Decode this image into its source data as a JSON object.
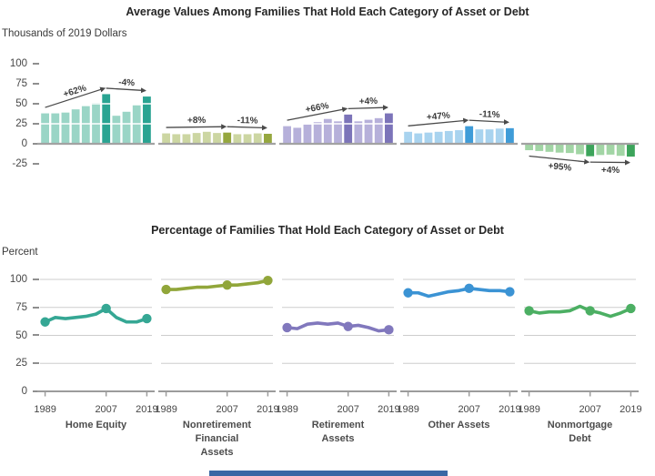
{
  "page": {
    "background": "#ffffff"
  },
  "chart_data": [
    {
      "type": "bar",
      "title": "Average Values Among Families That Hold Each Category of Asset or Debt",
      "ylabel": "Thousands of 2019 Dollars",
      "ylim": [
        -30,
        105
      ],
      "y_ticks": [
        100,
        75,
        50,
        25,
        0,
        -25
      ],
      "grid": "white-lines-over-bars-at-25-and-50",
      "x": [
        1989,
        1992,
        1995,
        1998,
        2001,
        2004,
        2007,
        2010,
        2013,
        2016,
        2019
      ],
      "highlight_years": [
        2007,
        2019
      ],
      "series": [
        {
          "name": "Home Equity",
          "color_light": "#9ad5c6",
          "color_dark": "#2aa492",
          "values": [
            38,
            38,
            39,
            43,
            47,
            51,
            62,
            35,
            40,
            48,
            59
          ],
          "annotations": [
            {
              "from": 1989,
              "to": 2007,
              "label": "+62%"
            },
            {
              "from": 2007,
              "to": 2019,
              "label": "-4%"
            }
          ]
        },
        {
          "name": "Nonretirement Financial Assets",
          "color_light": "#ccd6a2",
          "color_dark": "#95a73e",
          "values": [
            13,
            12,
            12,
            13.5,
            15,
            13.5,
            14,
            12,
            12,
            13,
            12.5
          ],
          "annotations": [
            {
              "from": 1989,
              "to": 2007,
              "label": "+8%"
            },
            {
              "from": 2007,
              "to": 2019,
              "label": "-11%"
            }
          ]
        },
        {
          "name": "Retirement Assets",
          "color_light": "#b6b0da",
          "color_dark": "#7c74b9",
          "values": [
            22,
            20,
            24,
            27,
            31,
            28,
            36.5,
            28,
            30,
            32,
            38
          ],
          "annotations": [
            {
              "from": 1989,
              "to": 2007,
              "label": "+66%"
            },
            {
              "from": 2007,
              "to": 2019,
              "label": "+4%"
            }
          ]
        },
        {
          "name": "Other Assets",
          "color_light": "#a8d3ef",
          "color_dark": "#3f9cd8",
          "values": [
            15,
            13,
            14,
            15,
            16,
            17,
            22,
            18,
            18,
            19,
            19.5
          ],
          "annotations": [
            {
              "from": 1989,
              "to": 2007,
              "label": "+47%"
            },
            {
              "from": 2007,
              "to": 2019,
              "label": "-11%"
            }
          ]
        },
        {
          "name": "Nonmortgage Debt",
          "color_light": "#a2d5a5",
          "color_dark": "#3ca45b",
          "values": [
            -8,
            -9,
            -10,
            -11,
            -11.5,
            -13,
            -15.5,
            -14,
            -13.5,
            -15,
            -16
          ],
          "annotations": [
            {
              "from": 1989,
              "to": 2007,
              "label": "+95%"
            },
            {
              "from": 2007,
              "to": 2019,
              "label": "+4%"
            }
          ]
        }
      ]
    },
    {
      "type": "line",
      "title": "Percentage of Families That Hold Each Category of Asset or Debt",
      "ylabel": "Percent",
      "ylim": [
        0,
        105
      ],
      "y_ticks": [
        100,
        75,
        50,
        25,
        0
      ],
      "grid": "horizontal-light-gray",
      "x": [
        1989,
        1992,
        1995,
        1998,
        2001,
        2004,
        2007,
        2010,
        2013,
        2016,
        2019
      ],
      "x_tick_labels": [
        "1989",
        "2007",
        "2019"
      ],
      "marker_years": [
        1989,
        2007,
        2019
      ],
      "series": [
        {
          "name": "Home Equity",
          "color": "#35a794",
          "values": [
            62,
            66,
            65,
            66,
            67,
            69,
            74,
            66,
            62,
            62,
            65
          ]
        },
        {
          "name": "Nonretirement Financial Assets",
          "color": "#91a63a",
          "values": [
            91,
            91,
            92,
            93,
            93,
            94,
            95,
            95,
            96,
            97,
            99
          ]
        },
        {
          "name": "Retirement Assets",
          "color": "#8178bd",
          "values": [
            57,
            56,
            60,
            61,
            60,
            61,
            58,
            59,
            57,
            54,
            55
          ]
        },
        {
          "name": "Other Assets",
          "color": "#3b93d4",
          "values": [
            88,
            88,
            85,
            87,
            89,
            90,
            92,
            91,
            90,
            90,
            89
          ]
        },
        {
          "name": "Nonmortgage Debt",
          "color": "#4caf63",
          "values": [
            72,
            70,
            71,
            71,
            72,
            76,
            72,
            70,
            67,
            70,
            74
          ]
        }
      ]
    }
  ],
  "category_labels": [
    {
      "text": "Home Equity"
    },
    {
      "text": "Nonretirement\nFinancial\nAssets"
    },
    {
      "text": "Retirement\nAssets"
    },
    {
      "text": "Other Assets"
    },
    {
      "text": "Nonmortgage\nDebt"
    }
  ],
  "partial_bottom_bar": {
    "color": "#3a67a4"
  }
}
